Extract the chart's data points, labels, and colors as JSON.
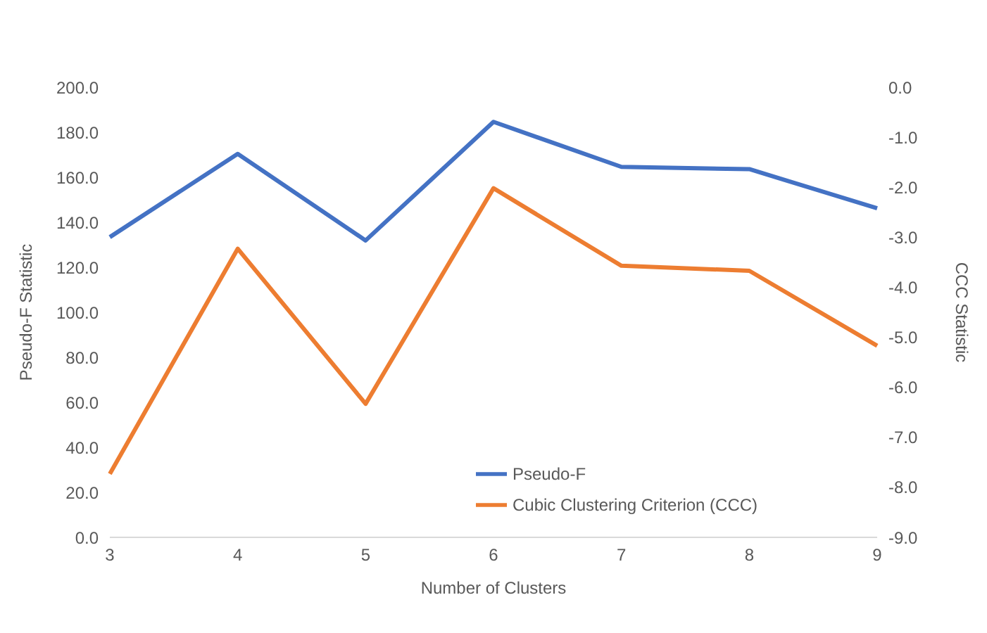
{
  "chart_data": {
    "type": "line",
    "xlabel": "Number of Clusters",
    "ylabel": "Pseudo-F Statistic",
    "y2label": "CCC Statistic",
    "categories": [
      "3",
      "4",
      "5",
      "6",
      "7",
      "8",
      "9"
    ],
    "series": [
      {
        "name": "Pseudo-F",
        "color": "#4472c4",
        "values": [
          133.4,
          170.4,
          131.9,
          184.6,
          164.6,
          163.6,
          146.2
        ]
      },
      {
        "name": "Cubic Clustering Criterion (CCC)",
        "color": "#ed7d31",
        "axis": "y2",
        "values": [
          -7.73,
          -3.23,
          -6.33,
          -2.02,
          -3.57,
          -3.67,
          -5.17
        ]
      }
    ],
    "ylim": [
      0,
      200
    ],
    "yticks": [
      {
        "value": 0,
        "label": "0.0"
      },
      {
        "value": 20,
        "label": "20.0"
      },
      {
        "value": 40,
        "label": "40.0"
      },
      {
        "value": 60,
        "label": "60.0"
      },
      {
        "value": 80,
        "label": "80.0"
      },
      {
        "value": 100,
        "label": "100.0"
      },
      {
        "value": 120,
        "label": "120.0"
      },
      {
        "value": 140,
        "label": "140.0"
      },
      {
        "value": 160,
        "label": "160.0"
      },
      {
        "value": 180,
        "label": "180.0"
      },
      {
        "value": 200,
        "label": "200.0"
      }
    ],
    "y2lim": [
      -9,
      0
    ],
    "y2ticks": [
      {
        "value": -9,
        "label": "-9.0"
      },
      {
        "value": -8,
        "label": "-8.0"
      },
      {
        "value": -7,
        "label": "-7.0"
      },
      {
        "value": -6,
        "label": "-6.0"
      },
      {
        "value": -5,
        "label": "-5.0"
      },
      {
        "value": -4,
        "label": "-4.0"
      },
      {
        "value": -3,
        "label": "-3.0"
      },
      {
        "value": -2,
        "label": "-2.0"
      },
      {
        "value": -1,
        "label": "-1.0"
      },
      {
        "value": 0,
        "label": "0.0"
      }
    ],
    "legend": "bottom",
    "marker": "none",
    "line_style": "solid"
  }
}
